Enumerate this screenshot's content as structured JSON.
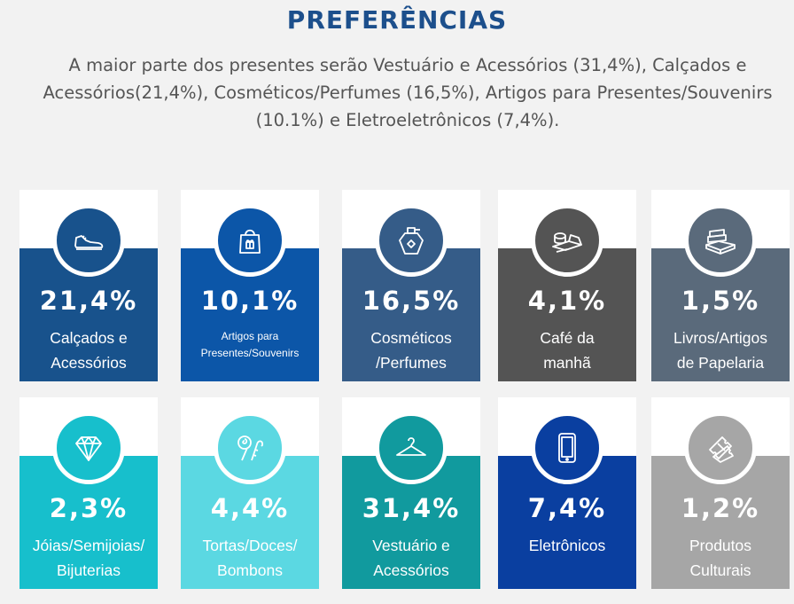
{
  "header": {
    "title": "PREFERÊNCIAS",
    "summary": "A maior parte dos presentes serão Vestuário e Acessórios (31,4%),  Calçados e Acessórios(21,4%), Cosméticos/Perfumes (16,5%), Artigos para Presentes/Souvenirs (10.1%) e Eletroeletrônicos (7,4%)."
  },
  "cards": [
    {
      "percent": "21,4%",
      "label_line1": "Calçados e",
      "label_line2": "Acessórios",
      "icon": "sneaker-icon",
      "color": "#18528c"
    },
    {
      "percent": "10,1%",
      "label_line1": "Artigos para",
      "label_line2": "Presentes/Souvenirs",
      "icon": "gift-bag-icon",
      "color": "#0c56a8"
    },
    {
      "percent": "16,5%",
      "label_line1": "Cosméticos",
      "label_line2": "/Perfumes",
      "icon": "perfume-icon",
      "color": "#355c88"
    },
    {
      "percent": "4,1%",
      "label_line1": "Café da",
      "label_line2": "manhã",
      "icon": "breakfast-icon",
      "color": "#545454"
    },
    {
      "percent": "1,5%",
      "label_line1": "Livros/Artigos",
      "label_line2": "de Papelaria",
      "icon": "books-icon",
      "color": "#5a6a7b"
    },
    {
      "percent": "2,3%",
      "label_line1": "Jóias/Semijoias/",
      "label_line2": "Bijuterias",
      "icon": "diamond-icon",
      "color": "#17bfcc"
    },
    {
      "percent": "4,4%",
      "label_line1": "Tortas/Doces/",
      "label_line2": "Bombons",
      "icon": "candy-icon",
      "color": "#5bd8e2"
    },
    {
      "percent": "31,4%",
      "label_line1": "Vestuário e",
      "label_line2": "Acessórios",
      "icon": "hanger-icon",
      "color": "#119a9e"
    },
    {
      "percent": "7,4%",
      "label_line1": "Eletrônicos",
      "label_line2": "",
      "icon": "smartphone-icon",
      "color": "#0a3fa0"
    },
    {
      "percent": "1,2%",
      "label_line1": "Produtos",
      "label_line2": "Culturais",
      "icon": "tickets-icon",
      "color": "#a6a6a6"
    }
  ]
}
